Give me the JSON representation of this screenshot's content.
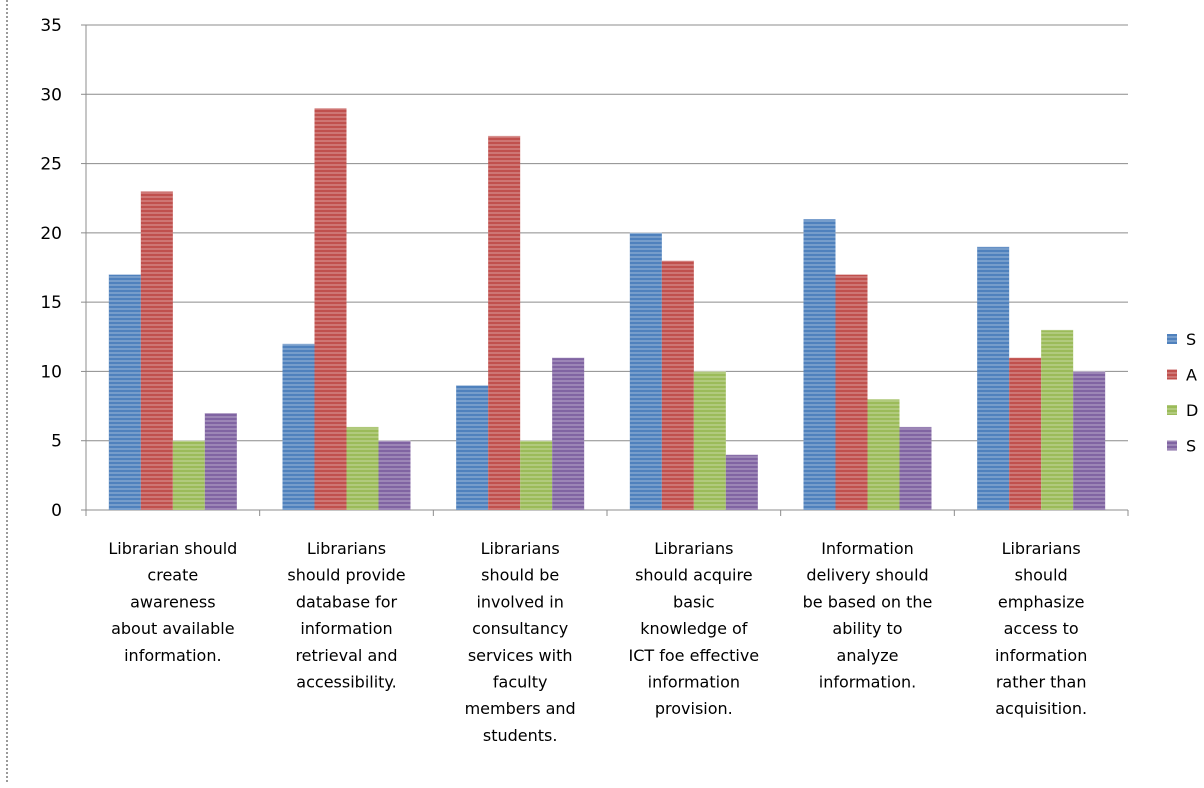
{
  "chart_data": {
    "type": "bar",
    "title": "",
    "xlabel": "",
    "ylabel": "",
    "ylim": [
      0,
      35
    ],
    "yticks": [
      "0",
      "5",
      "10",
      "15",
      "20",
      "25",
      "30",
      "35"
    ],
    "grid": true,
    "legend_position": "right",
    "categories": [
      [
        "Librarian should",
        "create",
        "awareness",
        "about available",
        "information."
      ],
      [
        "Librarians",
        "should provide",
        "database for",
        "information",
        "retrieval and",
        "accessibility."
      ],
      [
        "Librarians",
        "should be",
        "involved in",
        "consultancy",
        "services with",
        "faculty",
        "members and",
        "students."
      ],
      [
        "Librarians",
        "should acquire",
        "basic",
        "knowledge of",
        "ICT foe effective",
        "information",
        "provision."
      ],
      [
        "Information",
        "delivery should",
        "be based on the",
        "ability to",
        "analyze",
        "information."
      ],
      [
        "Librarians",
        "should",
        "emphasize",
        "access to",
        "information",
        "rather than",
        "acquisition."
      ]
    ],
    "series": [
      {
        "name": "S",
        "color": "#4F81BD",
        "values": [
          17,
          12,
          9,
          20,
          21,
          19
        ]
      },
      {
        "name": "A",
        "color": "#C0504D",
        "values": [
          23,
          29,
          27,
          18,
          17,
          11
        ]
      },
      {
        "name": "D",
        "color": "#9BBB59",
        "values": [
          5,
          6,
          5,
          10,
          8,
          13
        ]
      },
      {
        "name": "S",
        "color": "#8064A2",
        "values": [
          7,
          5,
          11,
          4,
          6,
          10
        ]
      }
    ]
  }
}
